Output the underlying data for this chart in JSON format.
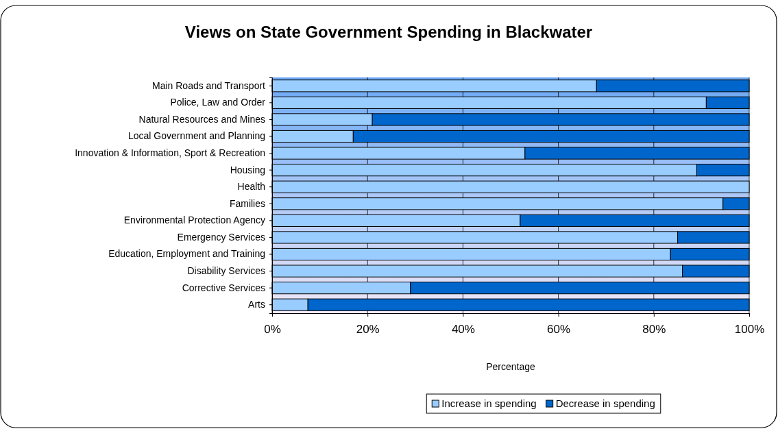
{
  "chart_data": {
    "type": "bar",
    "orientation": "horizontal",
    "stacked": true,
    "title": "Views on State Government Spending in Blackwater",
    "xlabel": "Percentage",
    "categories": [
      "Main Roads and Transport",
      "Police, Law and Order",
      "Natural Resources and Mines",
      "Local Government and Planning",
      "Innovation & Information, Sport & Recreation",
      "Housing",
      "Health",
      "Families",
      "Environmental Protection Agency",
      "Emergency Services",
      "Education, Employment and Training",
      "Disability Services",
      "Corrective Services",
      "Arts"
    ],
    "series": [
      {
        "name": "Increase in spending",
        "color": "#99ccff",
        "values": [
          68,
          91,
          21,
          17,
          53,
          89,
          100,
          94.5,
          52,
          85,
          83.5,
          86,
          29,
          7.5
        ]
      },
      {
        "name": "Decrease in spending",
        "color": "#0066cc",
        "values": [
          32,
          9,
          79,
          83,
          47,
          11,
          0,
          5.5,
          48,
          15,
          16.5,
          14,
          71,
          92.5
        ]
      }
    ],
    "xlim": [
      0,
      100
    ],
    "xticks": [
      {
        "value": 0,
        "label": "0%"
      },
      {
        "value": 20,
        "label": "20%"
      },
      {
        "value": 40,
        "label": "40%"
      },
      {
        "value": 60,
        "label": "60%"
      },
      {
        "value": 80,
        "label": "80%"
      },
      {
        "value": 100,
        "label": "100%"
      }
    ],
    "grid": "x",
    "legend": "bottom"
  }
}
